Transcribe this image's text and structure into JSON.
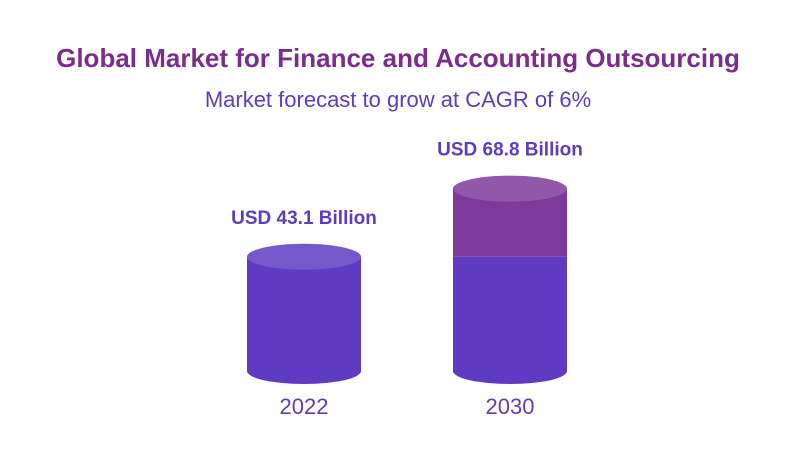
{
  "chart_data": {
    "type": "bar",
    "title": "Global Market for Finance and Accounting Outsourcing",
    "subtitle": "Market forecast to grow at CAGR of 6%",
    "categories": [
      "2022",
      "2030"
    ],
    "values": [
      43.1,
      68.8
    ],
    "value_labels": [
      "USD 43.1 Billion",
      "USD 68.8 Billion"
    ],
    "color": "#5e3bc2",
    "growth_color": "#7e3a9a"
  }
}
